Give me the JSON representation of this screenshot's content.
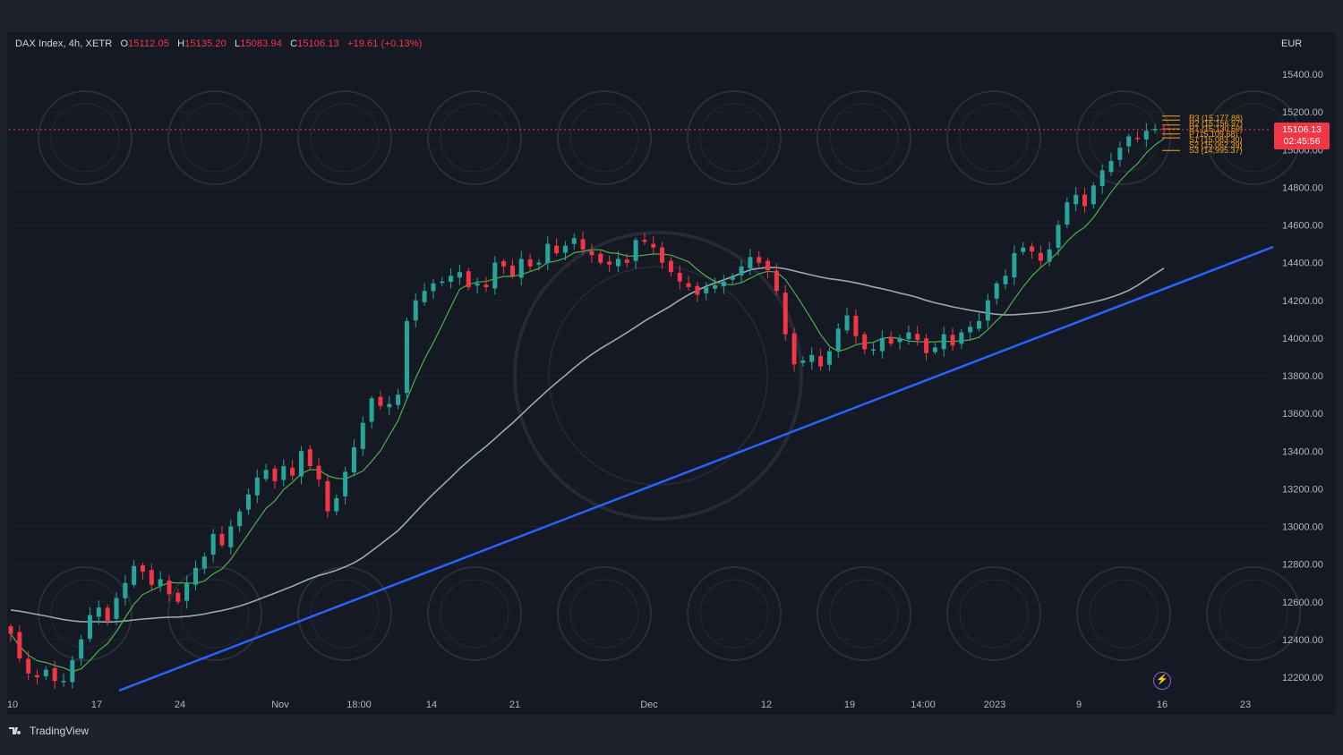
{
  "header": {
    "symbol": "DAX Index, 4h, XETR",
    "open_key": "O",
    "open": "15112.05",
    "high_key": "H",
    "high": "15135.20",
    "low_key": "L",
    "low": "15083.94",
    "close_key": "C",
    "close": "15106.13",
    "change": "+19.61 (+0.13%)"
  },
  "currency": "EUR",
  "price_tag": {
    "price": "15106.13",
    "countdown": "02:45:56"
  },
  "brand": "TradingView",
  "colors": {
    "background": "#151924",
    "up": "#26a69a",
    "down": "#f23645",
    "ma_fast": "#4caf50",
    "ma_slow": "#b2c3c9",
    "trendline": "#2962ff",
    "pivots": "#f7a21b"
  },
  "chart_data": {
    "type": "candlestick",
    "timeframe": "4h",
    "ylim": [
      12140,
      15530
    ],
    "y_ticks": [
      "15400.00",
      "15200.00",
      "15000.00",
      "14800.00",
      "14600.00",
      "14400.00",
      "14200.00",
      "14000.00",
      "13800.00",
      "13600.00",
      "13400.00",
      "13200.00",
      "13000.00",
      "12800.00",
      "12600.00",
      "12400.00",
      "12200.00"
    ],
    "x_ticks": [
      "10",
      "17",
      "24",
      "Nov",
      "18:00",
      "14",
      "21",
      "Dec",
      "12",
      "19",
      "14:00",
      "2023",
      "9",
      "16",
      "23"
    ],
    "pivot_levels": [
      {
        "label": "R3 (15,177.88)",
        "value": 15177.88
      },
      {
        "label": "R2 (15,156.97)",
        "value": 15156.97
      },
      {
        "label": "R1 (15,130.59)",
        "value": 15130.59
      },
      {
        "label": "P (15,109.68)",
        "value": 15109.68
      },
      {
        "label": "S1 (15,083.30)",
        "value": 15083.3
      },
      {
        "label": "S2 (15,062.39)",
        "value": 15062.39
      },
      {
        "label": "S3 (14,995.37)",
        "value": 14995.37
      }
    ],
    "last_price": 15106.13,
    "close_series": [
      12430,
      12300,
      12220,
      12200,
      12240,
      12180,
      12180,
      12290,
      12400,
      12530,
      12570,
      12500,
      12620,
      12700,
      12790,
      12760,
      12690,
      12720,
      12640,
      12600,
      12700,
      12780,
      12840,
      12960,
      12900,
      13000,
      13080,
      13170,
      13260,
      13300,
      13240,
      13320,
      13270,
      13400,
      13320,
      13250,
      13080,
      13150,
      13290,
      13420,
      13550,
      13680,
      13640,
      13650,
      13700,
      14090,
      14200,
      14250,
      14290,
      14300,
      14330,
      14350,
      14270,
      14290,
      14270,
      14400,
      14380,
      14330,
      14420,
      14380,
      14400,
      14500,
      14450,
      14490,
      14530,
      14470,
      14440,
      14400,
      14390,
      14420,
      14400,
      14520,
      14510,
      14480,
      14400,
      14350,
      14300,
      14270,
      14230,
      14270,
      14280,
      14300,
      14330,
      14380,
      14430,
      14400,
      14360,
      14250,
      14020,
      13860,
      13880,
      13910,
      13850,
      13930,
      14050,
      14120,
      14010,
      13940,
      13940,
      14000,
      13970,
      14000,
      14030,
      13990,
      13920,
      13950,
      14020,
      13960,
      14030,
      14060,
      14090,
      14200,
      14290,
      14330,
      14450,
      14480,
      14460,
      14410,
      14470,
      14600,
      14720,
      14760,
      14700,
      14810,
      14890,
      14940,
      15010,
      15070,
      15060,
      15100,
      15110,
      15106
    ]
  }
}
